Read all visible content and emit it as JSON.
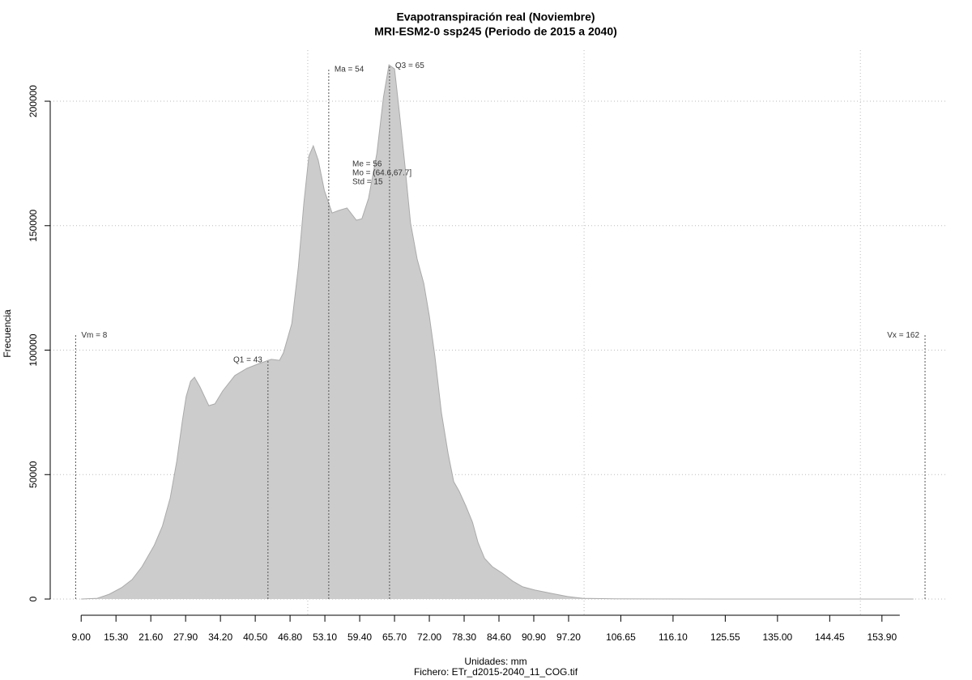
{
  "chart_data": {
    "type": "area",
    "title": "Evapotranspiración real (Noviembre)",
    "subtitle": "MRI-ESM2-0 ssp245 (Periodo de 2015 a 2040)",
    "x_label": "Unidades: mm",
    "y_label": "Frecuencia",
    "caption": "Fichero: ETr_d2015-2040_11_COG.tif",
    "color": "#cccccc",
    "grid": true,
    "xgrid_at": [
      50,
      100,
      150
    ],
    "x": [
      9,
      11.9,
      14.1,
      16.3,
      18.2,
      20,
      22.2,
      23.7,
      25.1,
      26.3,
      27.3,
      28,
      28.8,
      29.5,
      30.5,
      32.1,
      33.2,
      34.6,
      36.8,
      39,
      41.2,
      43.4,
      44.9,
      45.6,
      47.1,
      48.3,
      49.3,
      50.2,
      51,
      51.9,
      53,
      54.4,
      55.6,
      57.1,
      58.8,
      59.8,
      61,
      62.5,
      63.7,
      64.7,
      65.7,
      66.6,
      67.6,
      68.6,
      69.8,
      71,
      72,
      73,
      74.2,
      75.4,
      76.4,
      77.4,
      78.6,
      79.8,
      80.8,
      82,
      83.4,
      85.2,
      87.1,
      88.9,
      91.1,
      94,
      97,
      99.8,
      105.7,
      111.6,
      126.2,
      140.9,
      159.6
    ],
    "values": [
      0,
      300,
      1950,
      4550,
      7800,
      13000,
      21500,
      29300,
      40600,
      55300,
      71500,
      81300,
      87500,
      89100,
      85200,
      77700,
      78400,
      83600,
      89800,
      92700,
      94600,
      96300,
      95900,
      98900,
      110600,
      133300,
      159300,
      177900,
      182100,
      176300,
      164200,
      155100,
      156100,
      157100,
      152200,
      152800,
      161000,
      178900,
      201600,
      214600,
      213000,
      195100,
      174000,
      151200,
      136600,
      126800,
      113800,
      97600,
      74800,
      58500,
      47200,
      43300,
      37400,
      30900,
      22800,
      16300,
      13000,
      10400,
      7200,
      4900,
      3600,
      2300,
      1000,
      300,
      100,
      50,
      20,
      10,
      0
    ],
    "xlim": [
      3.4,
      165.8
    ],
    "ylim": [
      -6500,
      220500
    ],
    "yticks": [
      0,
      50000,
      100000,
      150000,
      200000
    ],
    "xticks": [
      {
        "value": 9,
        "label": "9.00"
      },
      {
        "value": 15.3,
        "label": "15.30"
      },
      {
        "value": 21.6,
        "label": "21.60"
      },
      {
        "value": 27.9,
        "label": "27.90"
      },
      {
        "value": 34.2,
        "label": "34.20"
      },
      {
        "value": 40.5,
        "label": "40.50"
      },
      {
        "value": 46.8,
        "label": "46.80"
      },
      {
        "value": 53.1,
        "label": "53.10"
      },
      {
        "value": 59.4,
        "label": "59.40"
      },
      {
        "value": 65.7,
        "label": "65.70"
      },
      {
        "value": 72,
        "label": "72.00"
      },
      {
        "value": 78.3,
        "label": "78.30"
      },
      {
        "value": 84.6,
        "label": "84.60"
      },
      {
        "value": 90.9,
        "label": "90.90"
      },
      {
        "value": 97.2,
        "label": "97.20"
      },
      {
        "value": 106.65,
        "label": "106.65"
      },
      {
        "value": 116.1,
        "label": "116.10"
      },
      {
        "value": 125.55,
        "label": "125.55"
      },
      {
        "value": 135,
        "label": "135.00"
      },
      {
        "value": 144.45,
        "label": "144.45"
      },
      {
        "value": 153.9,
        "label": "153.90"
      }
    ],
    "markers": [
      {
        "label": "Vm = 8",
        "value": 8,
        "height": 106300
      },
      {
        "label": "Q1 = 43",
        "value": 42.8,
        "height": 96300
      },
      {
        "label": "Ma = 54",
        "value": 53.8,
        "height": 213000
      },
      {
        "label": "Q3 = 65",
        "value": 64.8,
        "height": 214600
      },
      {
        "label": "Vx = 162",
        "value": 161.7,
        "height": 106300
      }
    ],
    "stats": [
      "Me = 56",
      "Mo = (64.6,67.7]",
      "Std = 15"
    ]
  }
}
